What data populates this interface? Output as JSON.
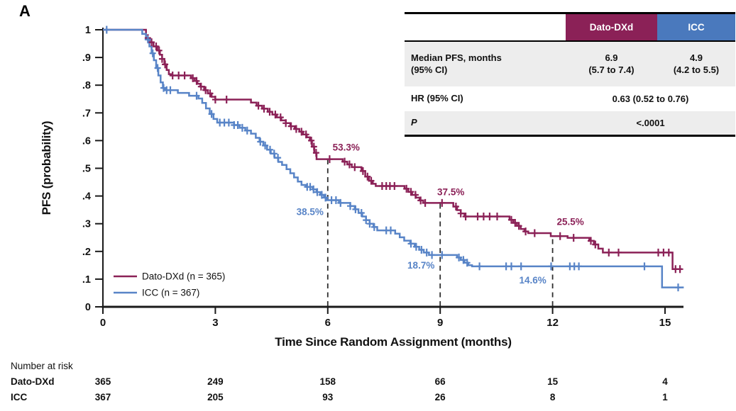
{
  "panel_label": "A",
  "colors": {
    "dato": "#8B2157",
    "icc_header": "#4A79BD",
    "icc_curve": "#5884C7",
    "axis": "#1a1a1a",
    "dropline": "#2f2f2f",
    "row_gray": "#ededed"
  },
  "chart_data": {
    "type": "line",
    "subtype": "kaplan-meier-step",
    "title": "",
    "xlabel": "Time Since Random Assignment (months)",
    "ylabel": "PFS (probability)",
    "xlim": [
      0,
      15.5
    ],
    "ylim": [
      0,
      1
    ],
    "x_ticks": [
      0,
      3,
      6,
      9,
      12,
      15
    ],
    "y_tick_values": [
      0,
      0.1,
      0.2,
      0.3,
      0.4,
      0.5,
      0.6,
      0.7,
      0.8,
      0.9,
      1
    ],
    "y_tick_labels": [
      "0",
      ".1",
      ".2",
      ".3",
      ".4",
      ".5",
      ".6",
      ".7",
      ".8",
      ".9",
      "1"
    ],
    "grid": false,
    "legend_position": "inside-lower-left",
    "dropline_months": [
      6,
      9,
      12
    ],
    "series": [
      {
        "id": "dato",
        "name": "Dato-DXd",
        "legend_label": "Dato-DXd (n = 365)",
        "color": "#8B2157",
        "end_month": 15.45,
        "points": [
          [
            0,
            1.0
          ],
          [
            1.15,
            0.97
          ],
          [
            1.25,
            0.955
          ],
          [
            1.35,
            0.94
          ],
          [
            1.45,
            0.925
          ],
          [
            1.52,
            0.91
          ],
          [
            1.58,
            0.895
          ],
          [
            1.64,
            0.875
          ],
          [
            1.7,
            0.855
          ],
          [
            1.76,
            0.84
          ],
          [
            1.82,
            0.835
          ],
          [
            2.35,
            0.825
          ],
          [
            2.45,
            0.815
          ],
          [
            2.52,
            0.805
          ],
          [
            2.6,
            0.795
          ],
          [
            2.7,
            0.782
          ],
          [
            2.8,
            0.77
          ],
          [
            2.9,
            0.758
          ],
          [
            3.0,
            0.748
          ],
          [
            3.95,
            0.737
          ],
          [
            4.1,
            0.726
          ],
          [
            4.25,
            0.715
          ],
          [
            4.4,
            0.704
          ],
          [
            4.52,
            0.694
          ],
          [
            4.64,
            0.684
          ],
          [
            4.76,
            0.673
          ],
          [
            4.88,
            0.663
          ],
          [
            5.0,
            0.652
          ],
          [
            5.12,
            0.642
          ],
          [
            5.24,
            0.632
          ],
          [
            5.34,
            0.622
          ],
          [
            5.44,
            0.612
          ],
          [
            5.52,
            0.6
          ],
          [
            5.58,
            0.578
          ],
          [
            5.64,
            0.556
          ],
          [
            5.7,
            0.533
          ],
          [
            6.4,
            0.524
          ],
          [
            6.52,
            0.514
          ],
          [
            6.64,
            0.504
          ],
          [
            6.9,
            0.49
          ],
          [
            7.0,
            0.47
          ],
          [
            7.1,
            0.455
          ],
          [
            7.2,
            0.444
          ],
          [
            7.28,
            0.436
          ],
          [
            8.05,
            0.426
          ],
          [
            8.15,
            0.415
          ],
          [
            8.25,
            0.404
          ],
          [
            8.35,
            0.394
          ],
          [
            8.45,
            0.384
          ],
          [
            8.55,
            0.375
          ],
          [
            9.35,
            0.362
          ],
          [
            9.45,
            0.349
          ],
          [
            9.55,
            0.337
          ],
          [
            9.65,
            0.326
          ],
          [
            10.85,
            0.314
          ],
          [
            10.95,
            0.303
          ],
          [
            11.05,
            0.292
          ],
          [
            11.15,
            0.281
          ],
          [
            11.25,
            0.272
          ],
          [
            11.35,
            0.266
          ],
          [
            11.95,
            0.255
          ],
          [
            12.4,
            0.249
          ],
          [
            12.98,
            0.238
          ],
          [
            13.1,
            0.225
          ],
          [
            13.22,
            0.21
          ],
          [
            13.34,
            0.196
          ],
          [
            15.2,
            0.136
          ]
        ],
        "censor_months": [
          1.2,
          1.3,
          1.42,
          1.5,
          1.58,
          1.66,
          1.86,
          2.02,
          2.18,
          2.4,
          2.5,
          2.62,
          2.74,
          2.86,
          3.0,
          3.3,
          4.15,
          4.3,
          4.45,
          4.6,
          4.74,
          4.88,
          5.02,
          5.16,
          5.3,
          5.42,
          5.56,
          5.63,
          5.69,
          6.05,
          6.45,
          6.58,
          6.72,
          6.94,
          7.06,
          7.16,
          7.45,
          7.56,
          7.66,
          7.78,
          8.1,
          8.22,
          8.34,
          8.48,
          8.6,
          9.05,
          9.42,
          9.55,
          9.68,
          10.0,
          10.16,
          10.32,
          10.52,
          10.9,
          11.0,
          11.1,
          11.28,
          11.52,
          12.2,
          12.56,
          13.02,
          13.14,
          13.5,
          13.76,
          14.82,
          14.96,
          15.1,
          15.28,
          15.4
        ]
      },
      {
        "id": "icc",
        "name": "ICC",
        "legend_label": "ICC (n = 367)",
        "color": "#5884C7",
        "end_month": 15.5,
        "points": [
          [
            0,
            1.0
          ],
          [
            1.05,
            0.985
          ],
          [
            1.15,
            0.965
          ],
          [
            1.24,
            0.94
          ],
          [
            1.3,
            0.915
          ],
          [
            1.36,
            0.89
          ],
          [
            1.42,
            0.862
          ],
          [
            1.48,
            0.835
          ],
          [
            1.54,
            0.81
          ],
          [
            1.6,
            0.79
          ],
          [
            1.66,
            0.782
          ],
          [
            2.0,
            0.772
          ],
          [
            2.3,
            0.762
          ],
          [
            2.55,
            0.752
          ],
          [
            2.65,
            0.736
          ],
          [
            2.75,
            0.716
          ],
          [
            2.85,
            0.696
          ],
          [
            2.95,
            0.678
          ],
          [
            3.05,
            0.665
          ],
          [
            3.5,
            0.656
          ],
          [
            3.65,
            0.646
          ],
          [
            3.8,
            0.636
          ],
          [
            3.95,
            0.625
          ],
          [
            4.08,
            0.61
          ],
          [
            4.18,
            0.596
          ],
          [
            4.28,
            0.582
          ],
          [
            4.38,
            0.567
          ],
          [
            4.48,
            0.553
          ],
          [
            4.58,
            0.538
          ],
          [
            4.68,
            0.523
          ],
          [
            4.78,
            0.512
          ],
          [
            4.9,
            0.497
          ],
          [
            5.0,
            0.482
          ],
          [
            5.1,
            0.467
          ],
          [
            5.2,
            0.452
          ],
          [
            5.3,
            0.44
          ],
          [
            5.42,
            0.433
          ],
          [
            5.6,
            0.424
          ],
          [
            5.7,
            0.414
          ],
          [
            5.8,
            0.404
          ],
          [
            5.9,
            0.394
          ],
          [
            5.98,
            0.385
          ],
          [
            6.3,
            0.375
          ],
          [
            6.6,
            0.364
          ],
          [
            6.72,
            0.352
          ],
          [
            6.82,
            0.339
          ],
          [
            6.92,
            0.326
          ],
          [
            7.02,
            0.313
          ],
          [
            7.12,
            0.3
          ],
          [
            7.22,
            0.288
          ],
          [
            7.32,
            0.276
          ],
          [
            7.8,
            0.264
          ],
          [
            7.92,
            0.251
          ],
          [
            8.04,
            0.239
          ],
          [
            8.2,
            0.228
          ],
          [
            8.32,
            0.217
          ],
          [
            8.44,
            0.206
          ],
          [
            8.56,
            0.196
          ],
          [
            8.7,
            0.187
          ],
          [
            9.45,
            0.178
          ],
          [
            9.55,
            0.169
          ],
          [
            9.65,
            0.159
          ],
          [
            9.75,
            0.15
          ],
          [
            9.85,
            0.146
          ],
          [
            14.92,
            0.07
          ]
        ],
        "censor_months": [
          0.1,
          1.2,
          1.33,
          1.46,
          1.62,
          1.7,
          1.8,
          2.5,
          2.9,
          3.12,
          3.24,
          3.36,
          3.5,
          3.6,
          3.72,
          3.85,
          4.2,
          4.33,
          4.46,
          4.57,
          4.67,
          5.45,
          5.53,
          5.62,
          5.72,
          5.84,
          5.94,
          6.1,
          6.22,
          6.34,
          6.6,
          6.74,
          6.9,
          7.02,
          7.12,
          7.24,
          7.56,
          7.68,
          8.22,
          8.36,
          8.5,
          8.64,
          8.78,
          9.05,
          9.5,
          9.62,
          9.72,
          10.05,
          10.76,
          10.9,
          11.16,
          11.96,
          12.46,
          12.58,
          12.7,
          14.45,
          15.35
        ]
      }
    ],
    "annotations": [
      {
        "id": "dato-6",
        "label": "53.3%",
        "series": "dato",
        "month": 6,
        "value": 0.533
      },
      {
        "id": "icc-6",
        "label": "38.5%",
        "series": "icc",
        "month": 6,
        "value": 0.385
      },
      {
        "id": "dato-9",
        "label": "37.5%",
        "series": "dato",
        "month": 9,
        "value": 0.375
      },
      {
        "id": "icc-9",
        "label": "18.7%",
        "series": "icc",
        "month": 9,
        "value": 0.187
      },
      {
        "id": "dato-12",
        "label": "25.5%",
        "series": "dato",
        "month": 12,
        "value": 0.255
      },
      {
        "id": "icc-12",
        "label": "14.6%",
        "series": "icc",
        "month": 12,
        "value": 0.146
      }
    ]
  },
  "stats_table": {
    "header": {
      "col_dato": "Dato-DXd",
      "col_icc": "ICC"
    },
    "median_row": {
      "label_line1": "Median PFS, months",
      "label_line2": "(95% CI)",
      "dato_line1": "6.9",
      "dato_line2": "(5.7 to 7.4)",
      "icc_line1": "4.9",
      "icc_line2": "(4.2 to 5.5)"
    },
    "hr_row": {
      "label": "HR (95% CI)",
      "value": "0.63 (0.52 to 0.76)"
    },
    "p_row": {
      "label": "P",
      "value": "<.0001"
    }
  },
  "risk_table": {
    "title": "Number at risk",
    "rows": [
      {
        "label": "Dato-DXd",
        "counts": [
          "365",
          "249",
          "158",
          "66",
          "15",
          "4"
        ]
      },
      {
        "label": "ICC",
        "counts": [
          "367",
          "205",
          "93",
          "26",
          "8",
          "1"
        ]
      }
    ]
  }
}
